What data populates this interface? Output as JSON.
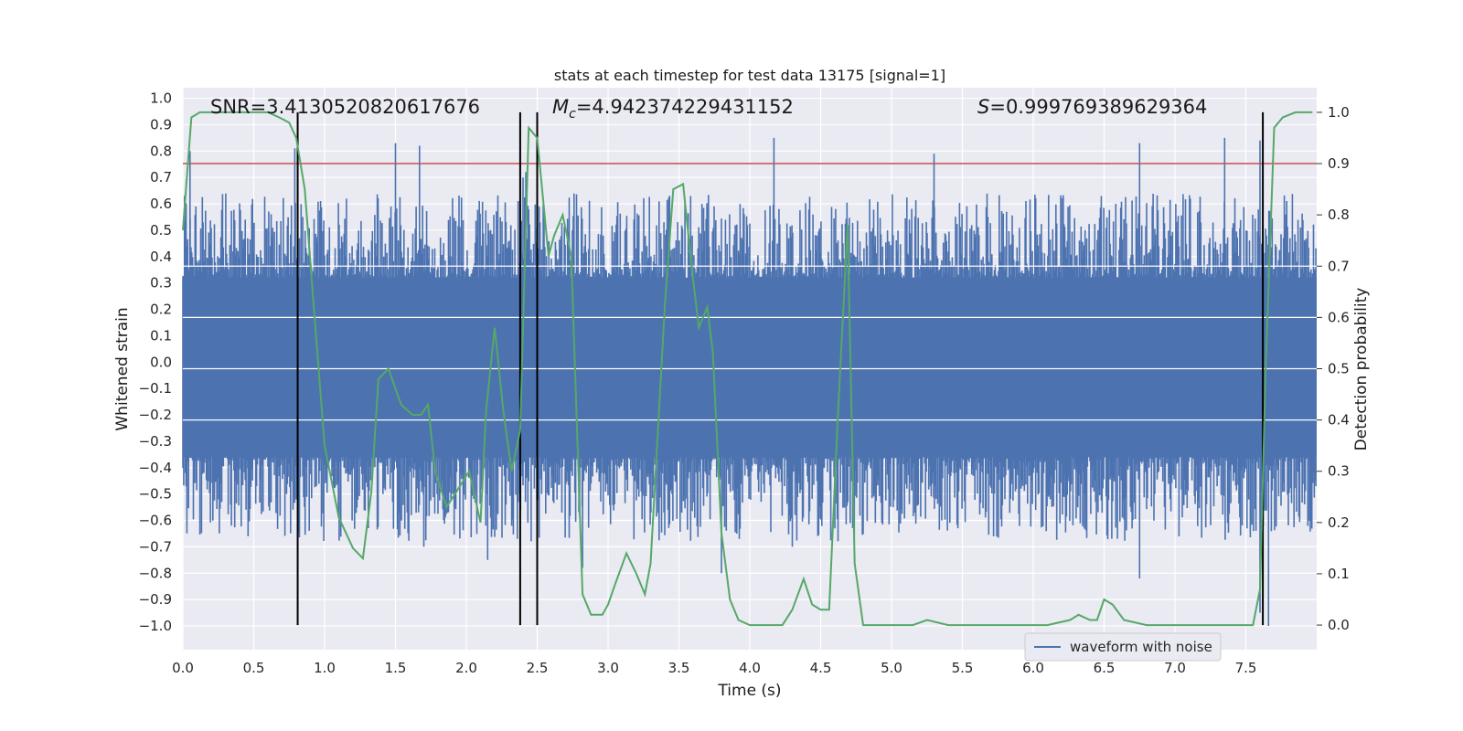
{
  "chart_data": {
    "type": "line",
    "title": "stats at each timestep for test data 13175 [signal=1]",
    "xlabel": "Time (s)",
    "ylabel": "Whitened strain",
    "y2label": "Detection probability",
    "xlim": [
      0.0,
      8.0
    ],
    "ylim": [
      -1.09,
      1.04
    ],
    "y2lim": [
      -0.048,
      1.048
    ],
    "xticks": [
      "0.0",
      "0.5",
      "1.0",
      "1.5",
      "2.0",
      "2.5",
      "3.0",
      "3.5",
      "4.0",
      "4.5",
      "5.0",
      "5.5",
      "6.0",
      "6.5",
      "7.0",
      "7.5"
    ],
    "yticks": [
      "1.0",
      "0.9",
      "0.8",
      "0.7",
      "0.6",
      "0.5",
      "0.4",
      "0.3",
      "0.2",
      "0.1",
      "0.0",
      "−0.1",
      "−0.2",
      "−0.3",
      "−0.4",
      "−0.5",
      "−0.6",
      "−0.7",
      "−0.8",
      "−0.9",
      "−1.0"
    ],
    "y2ticks": [
      "1.0",
      "0.9",
      "0.8",
      "0.7",
      "0.6",
      "0.5",
      "0.4",
      "0.3",
      "0.2",
      "0.1",
      "0.0"
    ],
    "grid": true,
    "annotations": {
      "snr_text": "SNR=3.4130520820617676",
      "mc_text": "=4.942374229431152",
      "mc_symbol": "M",
      "mc_sub": "c",
      "s_symbol": "S",
      "s_text": "=0.999769389629364"
    },
    "legend": {
      "placement": "lower-center-right",
      "entries": [
        "waveform with noise"
      ]
    },
    "threshold_probability": 0.9,
    "vertical_markers_time": [
      0.81,
      2.38,
      2.5,
      7.62
    ],
    "series": [
      {
        "name": "waveform with noise",
        "axis": "left",
        "kind": "noise",
        "core_envelope": [
          -0.36,
          0.32
        ],
        "peaks": [
          [
            0.05,
            0.8
          ],
          [
            0.79,
            0.81
          ],
          [
            1.5,
            0.83
          ],
          [
            1.67,
            0.82
          ],
          [
            2.4,
            0.7
          ],
          [
            2.42,
            0.72
          ],
          [
            4.17,
            0.85
          ],
          [
            5.3,
            0.79
          ],
          [
            6.75,
            0.83
          ],
          [
            7.35,
            0.85
          ],
          [
            7.6,
            0.84
          ]
        ],
        "troughs": [
          [
            0.46,
            -0.66
          ],
          [
            1.7,
            -0.7
          ],
          [
            2.15,
            -0.75
          ],
          [
            2.82,
            -0.78
          ],
          [
            3.8,
            -0.8
          ],
          [
            4.3,
            -0.7
          ],
          [
            6.75,
            -0.82
          ],
          [
            7.6,
            -0.95
          ],
          [
            7.66,
            -1.0
          ]
        ]
      },
      {
        "name": "",
        "axis": "right",
        "kind": "probability",
        "x": [
          0.0,
          0.06,
          0.12,
          0.2,
          0.3,
          0.4,
          0.5,
          0.6,
          0.68,
          0.75,
          0.8,
          0.86,
          0.93,
          1.0,
          1.1,
          1.2,
          1.27,
          1.33,
          1.38,
          1.45,
          1.54,
          1.62,
          1.68,
          1.73,
          1.78,
          1.86,
          1.93,
          2.02,
          2.1,
          2.14,
          2.2,
          2.26,
          2.32,
          2.38,
          2.44,
          2.5,
          2.58,
          2.62,
          2.68,
          2.74,
          2.82,
          2.88,
          2.96,
          3.0,
          3.05,
          3.13,
          3.2,
          3.26,
          3.3,
          3.4,
          3.46,
          3.53,
          3.59,
          3.64,
          3.7,
          3.74,
          3.8,
          3.86,
          3.92,
          4.0,
          4.15,
          4.23,
          4.3,
          4.38,
          4.44,
          4.5,
          4.56,
          4.62,
          4.69,
          4.74,
          4.8,
          4.9,
          5.0,
          5.15,
          5.25,
          5.4,
          5.55,
          5.75,
          5.9,
          6.1,
          6.26,
          6.32,
          6.4,
          6.45,
          6.5,
          6.56,
          6.64,
          6.8,
          7.1,
          7.22,
          7.3,
          7.4,
          7.5,
          7.55,
          7.6,
          7.64,
          7.7,
          7.76,
          7.85,
          7.92,
          7.97
        ],
        "y": [
          0.77,
          0.99,
          1.0,
          1.0,
          1.0,
          1.0,
          1.0,
          1.0,
          0.99,
          0.98,
          0.95,
          0.85,
          0.6,
          0.35,
          0.21,
          0.15,
          0.13,
          0.26,
          0.48,
          0.5,
          0.43,
          0.41,
          0.41,
          0.43,
          0.3,
          0.23,
          0.26,
          0.3,
          0.2,
          0.42,
          0.58,
          0.42,
          0.3,
          0.38,
          0.97,
          0.95,
          0.72,
          0.76,
          0.8,
          0.72,
          0.06,
          0.02,
          0.02,
          0.04,
          0.08,
          0.14,
          0.1,
          0.06,
          0.12,
          0.62,
          0.85,
          0.86,
          0.7,
          0.58,
          0.62,
          0.53,
          0.18,
          0.05,
          0.01,
          0.0,
          0.0,
          0.0,
          0.03,
          0.09,
          0.04,
          0.03,
          0.03,
          0.4,
          0.78,
          0.12,
          0.0,
          0.0,
          0.0,
          0.0,
          0.01,
          0.0,
          0.0,
          0.0,
          0.0,
          0.0,
          0.01,
          0.02,
          0.01,
          0.01,
          0.05,
          0.04,
          0.01,
          0.0,
          0.0,
          0.0,
          0.0,
          0.0,
          0.0,
          0.0,
          0.07,
          0.5,
          0.97,
          0.99,
          1.0,
          1.0,
          1.0
        ],
        "color": "#55a868"
      }
    ],
    "colors": {
      "background": "#eaeaf2",
      "grid": "#ffffff",
      "noise": "#4c72b0",
      "probability": "#55a868",
      "threshold": "#c44e52",
      "marker": "#000000"
    }
  }
}
